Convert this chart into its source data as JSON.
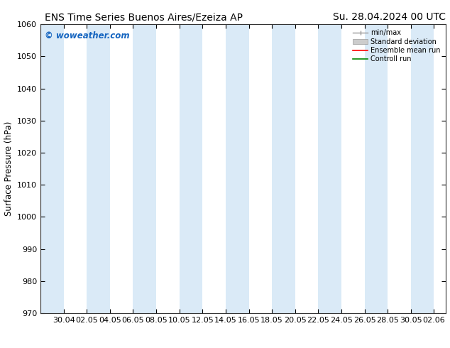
{
  "title_left": "ENS Time Series Buenos Aires/Ezeiza AP",
  "title_right": "Su. 28.04.2024 00 UTC",
  "ylabel": "Surface Pressure (hPa)",
  "ylim": [
    970,
    1060
  ],
  "yticks": [
    970,
    980,
    990,
    1000,
    1010,
    1020,
    1030,
    1040,
    1050,
    1060
  ],
  "xtick_labels": [
    "30.04",
    "02.05",
    "04.05",
    "06.05",
    "08.05",
    "10.05",
    "12.05",
    "14.05",
    "16.05",
    "18.05",
    "20.05",
    "22.05",
    "24.05",
    "26.05",
    "28.05",
    "30.05",
    "02.06"
  ],
  "watermark": "© woweather.com",
  "watermark_color": "#1565c0",
  "bg_color": "#ffffff",
  "plot_bg_color": "#ffffff",
  "shaded_band_color": "#daeaf7",
  "legend_entries": [
    "min/max",
    "Standard deviation",
    "Ensemble mean run",
    "Controll run"
  ],
  "legend_colors_line": [
    "#aaaaaa",
    "#bbbbbb",
    "#ff0000",
    "#00aa00"
  ],
  "title_fontsize": 10,
  "tick_fontsize": 8,
  "ylabel_fontsize": 8.5
}
